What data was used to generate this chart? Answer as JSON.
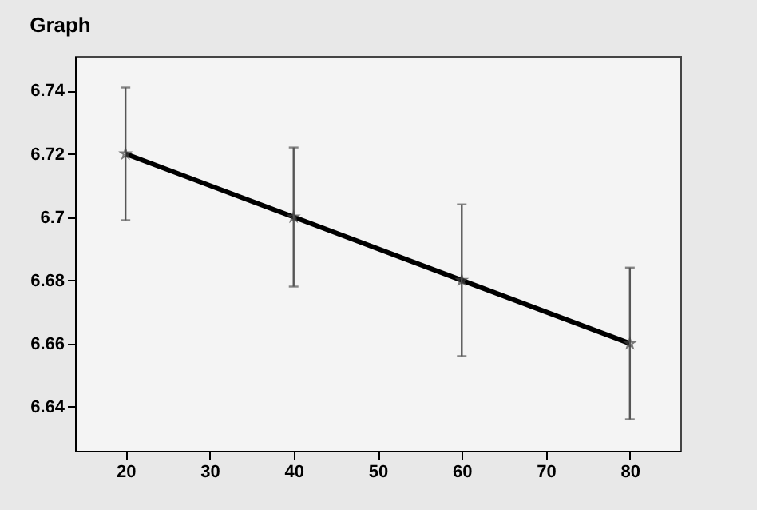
{
  "chart_data": {
    "type": "line",
    "title": "Graph",
    "x": [
      20,
      40,
      60,
      80
    ],
    "series": [
      {
        "color": "#000000",
        "values": [
          6.72,
          6.7,
          6.68,
          6.66
        ],
        "errors": [
          0.021,
          0.022,
          0.024,
          0.024
        ]
      }
    ],
    "xlim": [
      14,
      86
    ],
    "xticks": [
      20,
      30,
      40,
      50,
      60,
      70,
      80
    ],
    "ylim": [
      6.626,
      6.751
    ],
    "yticks": [
      6.64,
      6.66,
      6.68,
      6.7,
      6.72,
      6.74
    ],
    "marker": "star",
    "line_style": "solid",
    "grid": false
  }
}
